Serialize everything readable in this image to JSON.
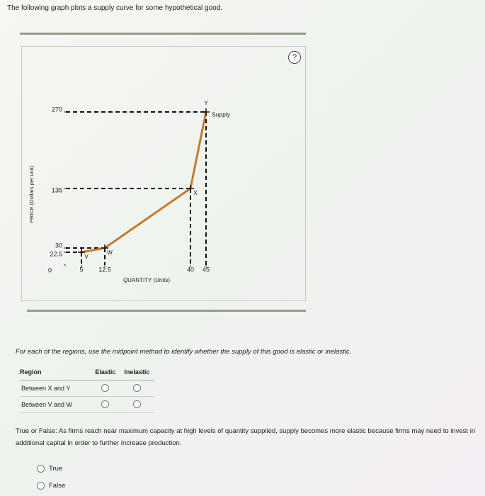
{
  "prompt": "The following graph plots a supply curve for some hypothetical good.",
  "help": "?",
  "chart_data": {
    "type": "line",
    "x_label": "QUANTITY (Units)",
    "y_label": "PRICE (Dollars per unit)",
    "xlim": [
      0,
      50
    ],
    "ylim": [
      0,
      300
    ],
    "xticks": [
      5,
      12.5,
      40,
      45
    ],
    "yticks": [
      0,
      22.5,
      30,
      135,
      270
    ],
    "dashed_guides": true,
    "series": [
      {
        "name": "Supply",
        "color": "#c8782a",
        "x": [
          5,
          12.5,
          40,
          45
        ],
        "values": [
          22.5,
          30,
          135,
          270
        ],
        "point_labels": [
          "V",
          "W",
          "X",
          "Y"
        ]
      }
    ]
  },
  "question1": {
    "text": "For each of the regions, use the midpoint method to identify whether the supply of this good is elastic or inelastic.",
    "headers": [
      "Region",
      "Elastic",
      "Inelastic"
    ],
    "rows": [
      "Between X and Y",
      "Between V and W"
    ]
  },
  "question2": {
    "text": "True or False: As firms reach near maximum capacity at high levels of quantity supplied, supply becomes more elastic because firms may need to invest in additional capital in order to further increase production.",
    "options": [
      "True",
      "False"
    ]
  }
}
